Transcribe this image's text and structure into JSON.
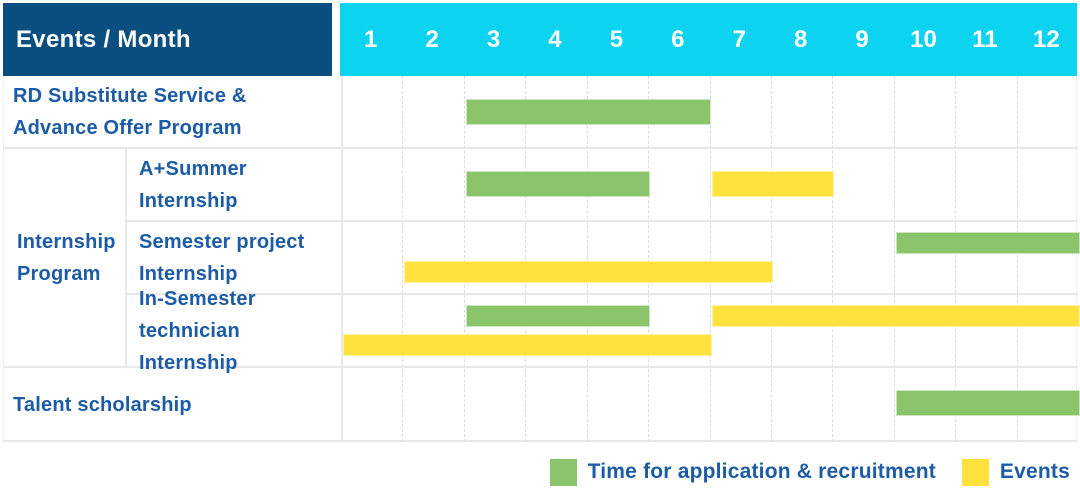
{
  "header": {
    "title": "Events / Month"
  },
  "colors": {
    "header_bg": "#0A4F80",
    "months_bg": "#0CD3EF",
    "green": "#8BC56B",
    "yellow": "#FFE23D",
    "text": "#1C5BA6",
    "grid": "#E8E8E8"
  },
  "legend": [
    {
      "swatch": "green",
      "label": "Time for application & recruitment"
    },
    {
      "swatch": "yellow",
      "label": "Events"
    }
  ],
  "chart_data": {
    "type": "gantt",
    "title": "Events / Month",
    "months": [
      "1",
      "2",
      "3",
      "4",
      "5",
      "6",
      "7",
      "8",
      "9",
      "10",
      "11",
      "12"
    ],
    "x_range": [
      1,
      12
    ],
    "grid": "on",
    "legend_position": "bottom-right",
    "bar_kinds": {
      "application": {
        "color": "#8BC56B",
        "meaning": "Time for application & recruitment"
      },
      "event": {
        "color": "#FFE23D",
        "meaning": "Events"
      }
    },
    "group": {
      "label": "Internship Program",
      "label_lines": [
        "Internship",
        "Program"
      ],
      "row_span": [
        2,
        4
      ]
    },
    "rows": [
      {
        "label": "RD Substitute Service & Advance Offer Program",
        "label_lines": [
          "RD Substitute Service &",
          "Advance Offer Program"
        ],
        "group": null,
        "bars": [
          {
            "kind": "application",
            "start_month": 3,
            "end_month": 6,
            "lane": "center"
          }
        ]
      },
      {
        "label": "A+Summer Internship",
        "label_lines": [
          "A+Summer",
          "Internship"
        ],
        "group": "Internship Program",
        "bars": [
          {
            "kind": "application",
            "start_month": 3,
            "end_month": 5,
            "lane": "center"
          },
          {
            "kind": "event",
            "start_month": 7,
            "end_month": 8,
            "lane": "center"
          }
        ]
      },
      {
        "label": "Semester project Internship",
        "label_lines": [
          "Semester project",
          "Internship"
        ],
        "group": "Internship Program",
        "bars": [
          {
            "kind": "application",
            "start_month": 10,
            "end_month": 12,
            "lane": "top"
          },
          {
            "kind": "event",
            "start_month": 2,
            "end_month": 7,
            "lane": "bottom"
          }
        ]
      },
      {
        "label": "In-Semester technician Internship",
        "label_lines": [
          "In-Semester",
          "technician Internship"
        ],
        "group": "Internship Program",
        "bars": [
          {
            "kind": "application",
            "start_month": 3,
            "end_month": 5,
            "lane": "top"
          },
          {
            "kind": "event",
            "start_month": 7,
            "end_month": 12,
            "lane": "top"
          },
          {
            "kind": "event",
            "start_month": 1,
            "end_month": 6,
            "lane": "bottom"
          }
        ]
      },
      {
        "label": "Talent scholarship",
        "label_lines": [
          "Talent scholarship"
        ],
        "group": null,
        "bars": [
          {
            "kind": "application",
            "start_month": 10,
            "end_month": 12,
            "lane": "center"
          }
        ]
      }
    ]
  }
}
